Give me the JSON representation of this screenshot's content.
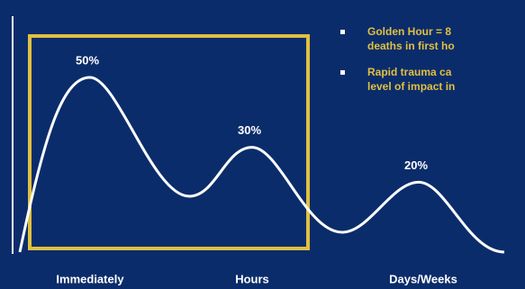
{
  "chart_data": {
    "type": "curve",
    "categories": [
      "Immediately",
      "Hours",
      "Days/Weeks"
    ],
    "values": [
      50,
      30,
      20
    ],
    "value_labels": [
      "50%",
      "30%",
      "20%"
    ],
    "color": "#ffffff",
    "notes": [
      [
        "Golden Hour = 8",
        "deaths in first ho"
      ],
      [
        "Rapid trauma ca",
        "level of impact in"
      ]
    ]
  }
}
